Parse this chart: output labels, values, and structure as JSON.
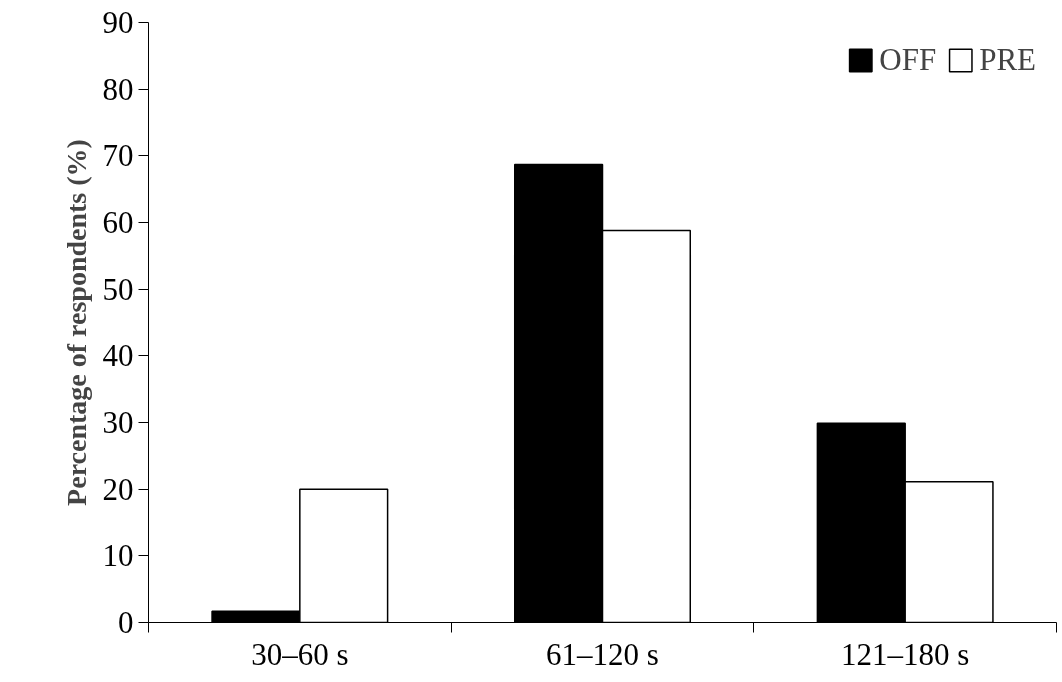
{
  "chart_data": {
    "type": "bar",
    "ylabel": "Percentage of respondents (%)",
    "categories": [
      "30–60 s",
      "61–120 s",
      "121–180 s"
    ],
    "series": [
      {
        "name": "OFF",
        "color": "#000000",
        "values": [
          1.7,
          68.7,
          29.9
        ]
      },
      {
        "name": "PRE",
        "color": "#ffffff",
        "values": [
          20,
          58.8,
          21.1
        ]
      }
    ],
    "ylim": [
      0,
      90
    ],
    "yticks": [
      0,
      10,
      20,
      30,
      40,
      50,
      60,
      70,
      80,
      90
    ],
    "grid": false,
    "legend": "top right"
  }
}
